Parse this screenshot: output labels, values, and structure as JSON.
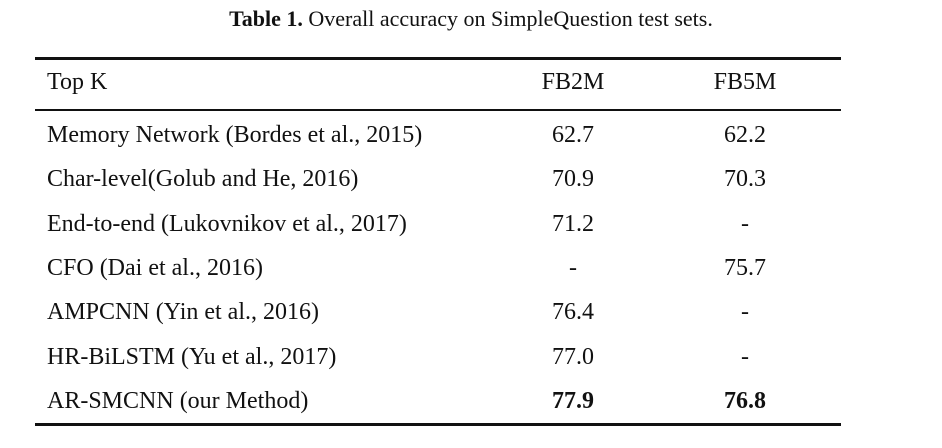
{
  "caption": {
    "label": "Table 1.",
    "text": " Overall accuracy on SimpleQuestion test sets."
  },
  "table": {
    "header": [
      "Top K",
      "FB2M",
      "FB5M"
    ],
    "rows": [
      [
        "Memory Network (Bordes et al., 2015)",
        "62.7",
        "62.2"
      ],
      [
        "Char-level(Golub and He, 2016)",
        "70.9",
        "70.3"
      ],
      [
        "End-to-end (Lukovnikov et al., 2017)",
        "71.2",
        "-"
      ],
      [
        "CFO (Dai et al., 2016)",
        "-",
        "75.7"
      ],
      [
        "AMPCNN (Yin et al., 2016)",
        "76.4",
        "-"
      ],
      [
        "HR-BiLSTM (Yu et al., 2017)",
        "77.0",
        "-"
      ],
      [
        "AR-SMCNN (our Method)",
        "77.9",
        "76.8"
      ]
    ]
  }
}
